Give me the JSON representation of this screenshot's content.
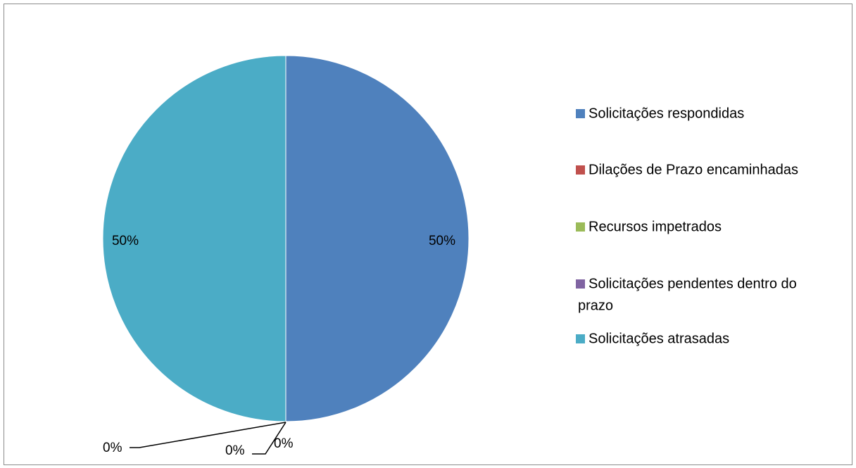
{
  "chart_data": {
    "type": "pie",
    "title": "",
    "legend_position": "right",
    "series": [
      {
        "name": "Solicitações respondidas",
        "value": 50,
        "label": "50%",
        "color": "#4F81BD"
      },
      {
        "name": "Dilações de Prazo encaminhadas",
        "value": 0,
        "label": "0%",
        "color": "#C0504D"
      },
      {
        "name": "Recursos impetrados",
        "value": 0,
        "label": "0%",
        "color": "#9BBB59"
      },
      {
        "name": "Solicitações pendentes dentro do prazo",
        "value": 0,
        "label": "0%",
        "color": "#8064A2"
      },
      {
        "name": "Solicitações atrasadas",
        "value": 50,
        "label": "50%",
        "color": "#4BACC6"
      }
    ],
    "legend_lines": [
      [
        "Solicitações respondidas"
      ],
      [
        "Dilações de Prazo encaminhadas"
      ],
      [
        "Recursos impetrados"
      ],
      [
        "Solicitações pendentes dentro do",
        "prazo"
      ],
      [
        "Solicitações atrasadas"
      ]
    ]
  }
}
